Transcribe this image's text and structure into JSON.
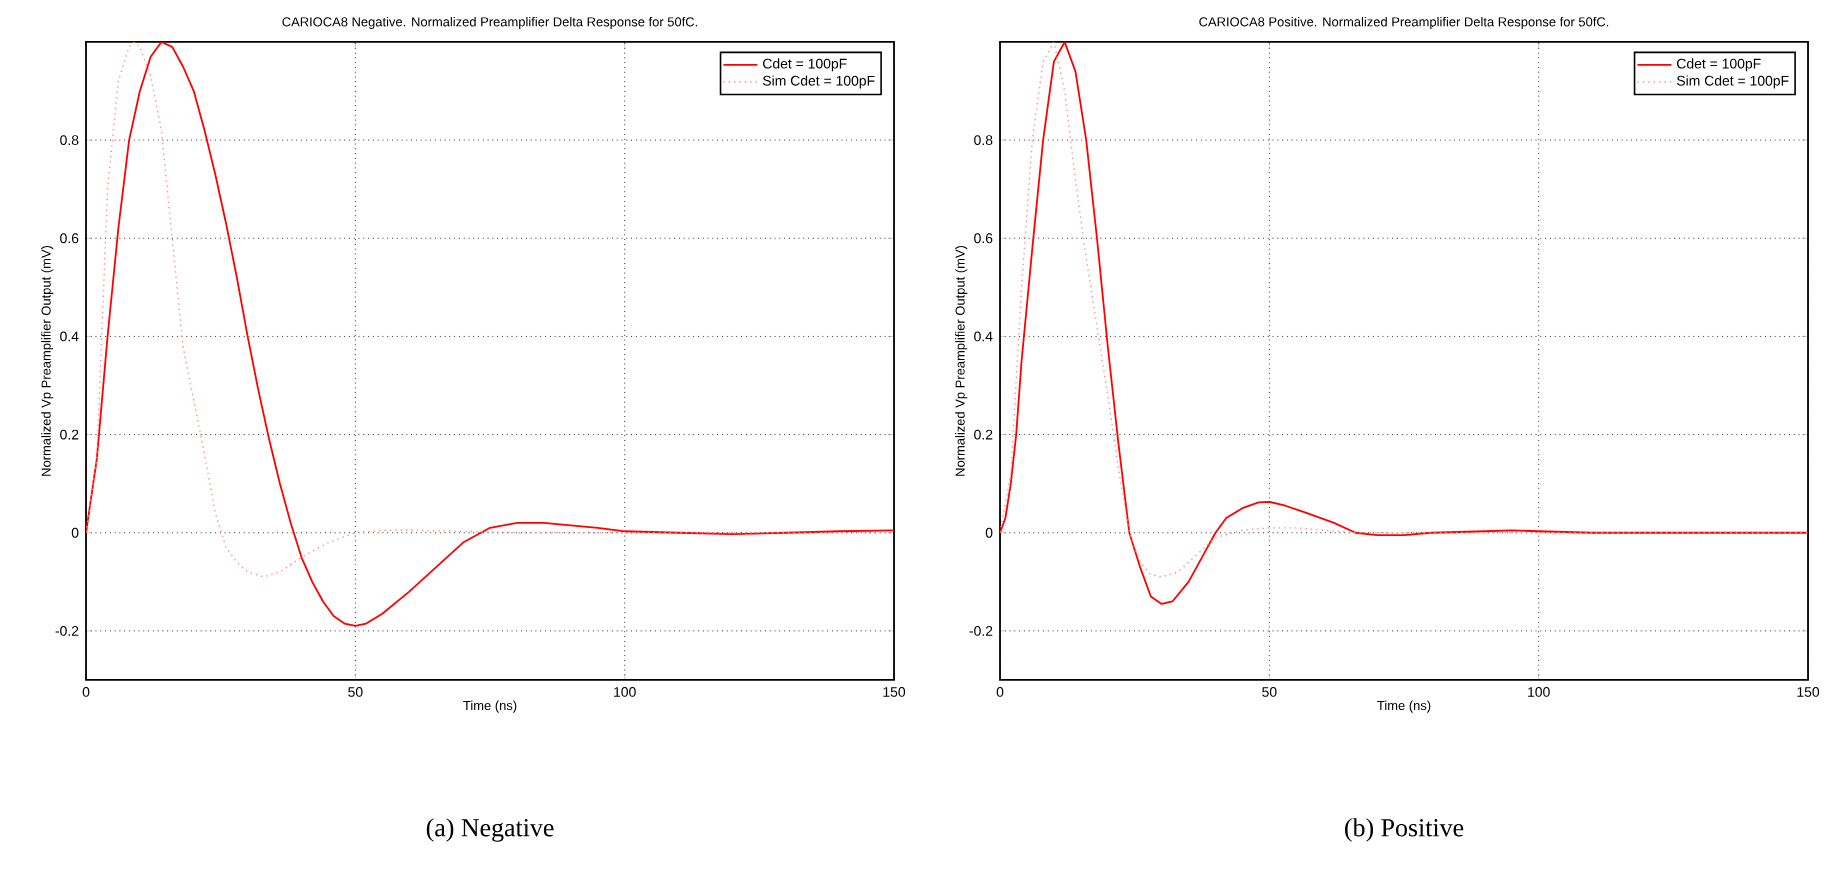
{
  "chart_data": [
    {
      "type": "line",
      "title": "CARIOCA8 Negative. Normalized Preamplifier Delta Response for 50fC.",
      "xlabel": "Time (ns)",
      "ylabel": "Normalized Vp Preamplifier Output (mV)",
      "xlim": [
        0,
        150
      ],
      "ylim": [
        -0.3,
        1.0
      ],
      "xticks": [
        0,
        50,
        100,
        150
      ],
      "yticks": [
        -0.2,
        0,
        0.2,
        0.4,
        0.6,
        0.8
      ],
      "grid": true,
      "legend": "top right",
      "annotations": [
        "(a) Negative"
      ],
      "series": [
        {
          "name": "Cdet = 100pF",
          "color": "#ff0000",
          "line_style": "solid",
          "x": [
            0,
            2,
            4,
            6,
            8,
            10,
            12,
            14,
            16,
            18,
            20,
            22,
            24,
            26,
            28,
            30,
            32,
            34,
            36,
            38,
            40,
            42,
            44,
            46,
            48,
            50,
            52,
            55,
            60,
            65,
            70,
            75,
            80,
            85,
            90,
            95,
            100,
            110,
            120,
            130,
            140,
            150
          ],
          "values": [
            0.0,
            0.15,
            0.4,
            0.62,
            0.8,
            0.9,
            0.97,
            1.0,
            0.99,
            0.95,
            0.9,
            0.82,
            0.73,
            0.63,
            0.52,
            0.4,
            0.29,
            0.19,
            0.1,
            0.02,
            -0.05,
            -0.1,
            -0.14,
            -0.17,
            -0.185,
            -0.19,
            -0.185,
            -0.165,
            -0.12,
            -0.07,
            -0.02,
            0.01,
            0.02,
            0.02,
            0.015,
            0.01,
            0.003,
            0.0,
            -0.003,
            0.0,
            0.003,
            0.005
          ]
        },
        {
          "name": "Sim Cdet = 100pF",
          "color": "#ff8c8c",
          "line_style": "dotted",
          "x": [
            0,
            2,
            4,
            6,
            8,
            9,
            10,
            12,
            14,
            16,
            18,
            20,
            22,
            24,
            26,
            28,
            30,
            33,
            36,
            40,
            45,
            50,
            55,
            60,
            70,
            80,
            100,
            150
          ],
          "values": [
            0.0,
            0.15,
            0.7,
            0.92,
            0.99,
            1.0,
            0.99,
            0.93,
            0.82,
            0.6,
            0.38,
            0.27,
            0.16,
            0.04,
            -0.03,
            -0.06,
            -0.08,
            -0.09,
            -0.08,
            -0.05,
            -0.02,
            0.0,
            0.005,
            0.005,
            0.003,
            0.0,
            0.0,
            0.0
          ]
        }
      ]
    },
    {
      "type": "line",
      "title": "CARIOCA8 Positive. Normalized Preamplifier Delta Response for 50fC.",
      "xlabel": "Time (ns)",
      "ylabel": "Normalized Vp Preamplifier Output (mV)",
      "xlim": [
        0,
        150
      ],
      "ylim": [
        -0.3,
        1.0
      ],
      "xticks": [
        0,
        50,
        100,
        150
      ],
      "yticks": [
        -0.2,
        0,
        0.2,
        0.4,
        0.6,
        0.8
      ],
      "grid": true,
      "legend": "top right",
      "annotations": [
        "(b) Positive"
      ],
      "series": [
        {
          "name": "Cdet = 100pF",
          "color": "#ff0000",
          "line_style": "solid",
          "x": [
            0,
            1,
            2,
            3,
            4,
            6,
            8,
            10,
            12,
            14,
            16,
            18,
            20,
            22,
            24,
            26,
            28,
            30,
            32,
            35,
            38,
            40,
            42,
            45,
            48,
            50,
            53,
            57,
            62,
            66,
            70,
            75,
            80,
            90,
            95,
            100,
            110,
            120,
            150
          ],
          "values": [
            0.0,
            0.03,
            0.1,
            0.2,
            0.35,
            0.58,
            0.8,
            0.96,
            1.0,
            0.94,
            0.8,
            0.6,
            0.38,
            0.18,
            0.0,
            -0.07,
            -0.13,
            -0.145,
            -0.14,
            -0.1,
            -0.04,
            0.0,
            0.03,
            0.05,
            0.062,
            0.063,
            0.055,
            0.04,
            0.02,
            0.0,
            -0.005,
            -0.005,
            0.0,
            0.003,
            0.005,
            0.003,
            0.0,
            0.0,
            0.0
          ]
        },
        {
          "name": "Sim Cdet = 100pF",
          "color": "#ff8c8c",
          "line_style": "dotted",
          "x": [
            0,
            2,
            4,
            6,
            8,
            10,
            12,
            14,
            16,
            18,
            20,
            22,
            24,
            26,
            28,
            30,
            33,
            36,
            40,
            45,
            50,
            55,
            60,
            66,
            80,
            100,
            150
          ],
          "values": [
            0.0,
            0.12,
            0.5,
            0.8,
            0.96,
            1.0,
            0.9,
            0.72,
            0.56,
            0.42,
            0.28,
            0.13,
            0.0,
            -0.06,
            -0.085,
            -0.09,
            -0.08,
            -0.05,
            -0.01,
            0.005,
            0.01,
            0.01,
            0.005,
            0.0,
            0.0,
            0.0,
            0.0
          ]
        }
      ]
    }
  ]
}
